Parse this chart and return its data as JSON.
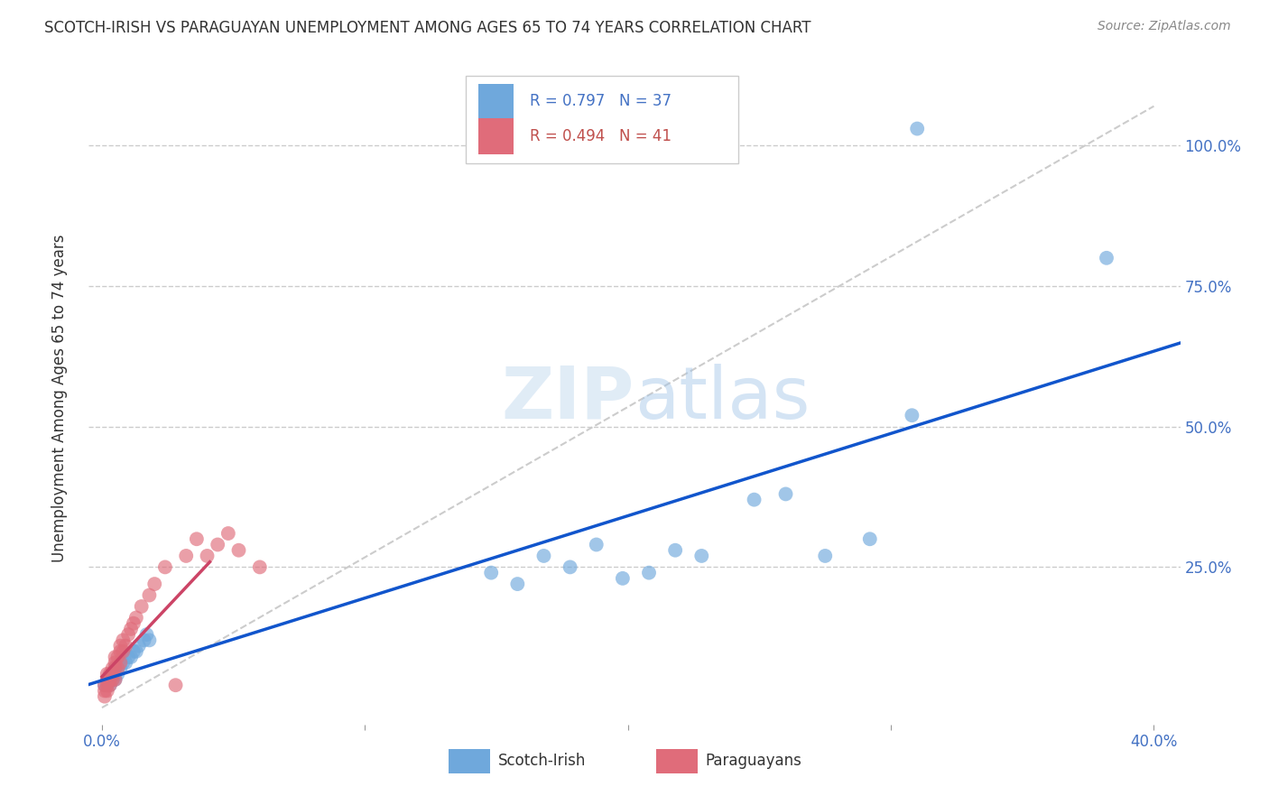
{
  "title": "SCOTCH-IRISH VS PARAGUAYAN UNEMPLOYMENT AMONG AGES 65 TO 74 YEARS CORRELATION CHART",
  "source": "Source: ZipAtlas.com",
  "ylabel": "Unemployment Among Ages 65 to 74 years",
  "xlim": [
    -0.005,
    0.41
  ],
  "ylim": [
    -0.03,
    1.13
  ],
  "xtick_positions": [
    0.0,
    0.1,
    0.2,
    0.3,
    0.4
  ],
  "xtick_labels": [
    "0.0%",
    "",
    "",
    "",
    "40.0%"
  ],
  "ytick_values": [
    0.25,
    0.5,
    0.75,
    1.0
  ],
  "ytick_labels": [
    "25.0%",
    "50.0%",
    "75.0%",
    "100.0%"
  ],
  "blue_color": "#6fa8dc",
  "pink_color": "#e06c7a",
  "blue_line_color": "#1155cc",
  "pink_line_color": "#cc4466",
  "diag_line_color": "#cccccc",
  "legend_blue_r": "R = 0.797",
  "legend_blue_n": "N = 37",
  "legend_pink_r": "R = 0.494",
  "legend_pink_n": "N = 41",
  "watermark": "ZIPatlas",
  "scotch_irish_x": [
    0.001,
    0.002,
    0.002,
    0.003,
    0.003,
    0.004,
    0.004,
    0.005,
    0.005,
    0.006,
    0.007,
    0.008,
    0.009,
    0.01,
    0.011,
    0.012,
    0.013,
    0.014,
    0.016,
    0.017,
    0.018,
    0.148,
    0.158,
    0.168,
    0.178,
    0.188,
    0.198,
    0.208,
    0.218,
    0.228,
    0.248,
    0.26,
    0.275,
    0.292,
    0.308,
    0.382,
    0.31
  ],
  "scotch_irish_y": [
    0.04,
    0.04,
    0.05,
    0.04,
    0.05,
    0.05,
    0.06,
    0.05,
    0.07,
    0.06,
    0.07,
    0.08,
    0.08,
    0.09,
    0.09,
    0.1,
    0.1,
    0.11,
    0.12,
    0.13,
    0.12,
    0.24,
    0.22,
    0.27,
    0.25,
    0.29,
    0.23,
    0.24,
    0.28,
    0.27,
    0.37,
    0.38,
    0.27,
    0.3,
    0.52,
    0.8,
    1.03
  ],
  "paraguayan_x": [
    0.001,
    0.001,
    0.001,
    0.002,
    0.002,
    0.002,
    0.002,
    0.003,
    0.003,
    0.003,
    0.004,
    0.004,
    0.004,
    0.005,
    0.005,
    0.005,
    0.005,
    0.006,
    0.006,
    0.007,
    0.007,
    0.007,
    0.008,
    0.008,
    0.009,
    0.01,
    0.011,
    0.012,
    0.013,
    0.015,
    0.018,
    0.02,
    0.024,
    0.028,
    0.032,
    0.036,
    0.04,
    0.044,
    0.048,
    0.052,
    0.06
  ],
  "paraguayan_y": [
    0.02,
    0.03,
    0.04,
    0.03,
    0.04,
    0.05,
    0.06,
    0.04,
    0.05,
    0.06,
    0.05,
    0.06,
    0.07,
    0.05,
    0.07,
    0.08,
    0.09,
    0.07,
    0.09,
    0.08,
    0.1,
    0.11,
    0.1,
    0.12,
    0.11,
    0.13,
    0.14,
    0.15,
    0.16,
    0.18,
    0.2,
    0.22,
    0.25,
    0.04,
    0.27,
    0.3,
    0.27,
    0.29,
    0.31,
    0.28,
    0.25
  ]
}
